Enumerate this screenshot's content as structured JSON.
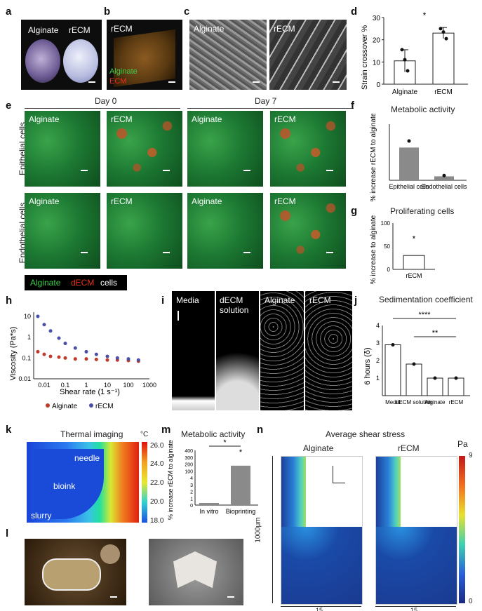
{
  "panels": {
    "a": {
      "letter": "a",
      "labels": [
        "Alginate",
        "rECM"
      ]
    },
    "b": {
      "letter": "b",
      "title": "rECM",
      "legend": [
        "Alginate",
        "ECM"
      ]
    },
    "c": {
      "letter": "c",
      "labels": [
        "Alginate",
        "rECM"
      ]
    },
    "d": {
      "letter": "d"
    },
    "e": {
      "letter": "e",
      "days": [
        "Day 0",
        "Day 7"
      ],
      "rows": [
        "Epithelial cells",
        "Endothelial cells"
      ],
      "cols": [
        "Alginate",
        "rECM",
        "Alginate",
        "rECM"
      ],
      "legend": [
        "Alginate",
        "dECM",
        "cells"
      ]
    },
    "f": {
      "letter": "f"
    },
    "g": {
      "letter": "g"
    },
    "h": {
      "letter": "h"
    },
    "i": {
      "letter": "i",
      "labels": [
        "Media",
        "dECM solution",
        "Alginate",
        "rECM"
      ]
    },
    "j": {
      "letter": "j"
    },
    "k": {
      "letter": "k",
      "title": "Thermal imaging",
      "unit": "°C",
      "ticks": [
        "26.0",
        "24.0",
        "22.0",
        "20.0",
        "18.0"
      ],
      "annotations": [
        "needle",
        "bioink",
        "slurry"
      ]
    },
    "l": {
      "letter": "l"
    },
    "m": {
      "letter": "m"
    },
    "n": {
      "letter": "n",
      "title": "Average shear stress",
      "sub": [
        "Alginate",
        "rECM"
      ],
      "unit": "Pa",
      "max": "9",
      "min": "0",
      "axis_label": "1000μm",
      "bottom_label": "15",
      "z": "z",
      "r": "r"
    }
  },
  "chart_data": [
    {
      "id": "d",
      "type": "bar",
      "ylabel": "Strain crossover %",
      "categories": [
        "Alginate",
        "rECM"
      ],
      "values": [
        10.5,
        23
      ],
      "errors": [
        5,
        2.5
      ],
      "points": [
        [
          15.5,
          11,
          6
        ],
        [
          25,
          23.5,
          20.5
        ]
      ],
      "ylim": [
        0,
        30
      ],
      "yticks": [
        "0",
        "10",
        "20",
        "30"
      ],
      "sig": "*"
    },
    {
      "id": "f",
      "type": "bar",
      "title": "Metabolic activity",
      "ylabel": "% increase rECM to alginate",
      "categories": [
        "Epithelial cells",
        "Endothelial cells"
      ],
      "values": [
        175,
        21
      ],
      "colors": [
        "#8a8a8a",
        "#8a8a8a"
      ]
    },
    {
      "id": "g",
      "type": "bar",
      "title": "Proliferating cells",
      "ylabel": "% increase to alginate",
      "categories": [
        "rECM"
      ],
      "values": [
        30
      ],
      "yticks": [
        "0",
        "50",
        "100"
      ],
      "sig": "*"
    },
    {
      "id": "h",
      "type": "line",
      "xlabel": "Shear rate (1 s⁻¹)",
      "ylabel": "Viscosity (Pa*s)",
      "xticks": [
        "0.01",
        "0.1",
        "1",
        "10",
        "100",
        "1000"
      ],
      "yticks": [
        "10",
        "1",
        "0.1",
        "0.01"
      ],
      "series": [
        {
          "name": "Alginate",
          "color": "#c0392b",
          "x": [
            0.005,
            0.01,
            0.02,
            0.05,
            0.1,
            0.3,
            1,
            3,
            10,
            30,
            100,
            300
          ],
          "y": [
            0.2,
            0.15,
            0.12,
            0.11,
            0.1,
            0.09,
            0.09,
            0.085,
            0.08,
            0.08,
            0.075,
            0.07
          ]
        },
        {
          "name": "rECM",
          "color": "#4a4fa8",
          "x": [
            0.005,
            0.01,
            0.02,
            0.05,
            0.1,
            0.3,
            1,
            3,
            10,
            30,
            100,
            300
          ],
          "y": [
            10,
            4,
            2,
            0.9,
            0.5,
            0.3,
            0.2,
            0.15,
            0.12,
            0.1,
            0.09,
            0.08
          ]
        }
      ]
    },
    {
      "id": "j",
      "type": "bar",
      "title": "Sedimentation coefficient",
      "ylabel": "6 hours (δ)",
      "categories": [
        "Media",
        "dECM solution",
        "Alginate",
        "rECM"
      ],
      "values": [
        2.9,
        1.8,
        1.0,
        1.0
      ],
      "ylim": [
        0,
        4
      ],
      "yticks": [
        "1",
        "2",
        "3",
        "4"
      ],
      "sig": [
        "****",
        "**"
      ]
    },
    {
      "id": "m",
      "type": "bar",
      "title": "Metabolic activity",
      "ylabel": "% increase rECM to alginate",
      "categories": [
        "In vitro",
        "Bioprinting"
      ],
      "values": [
        1.5,
        290
      ],
      "yticks": [
        "0",
        "1",
        "2",
        "3",
        "4",
        "100",
        "200",
        "300",
        "400"
      ],
      "sig": [
        "*",
        "*"
      ]
    }
  ]
}
